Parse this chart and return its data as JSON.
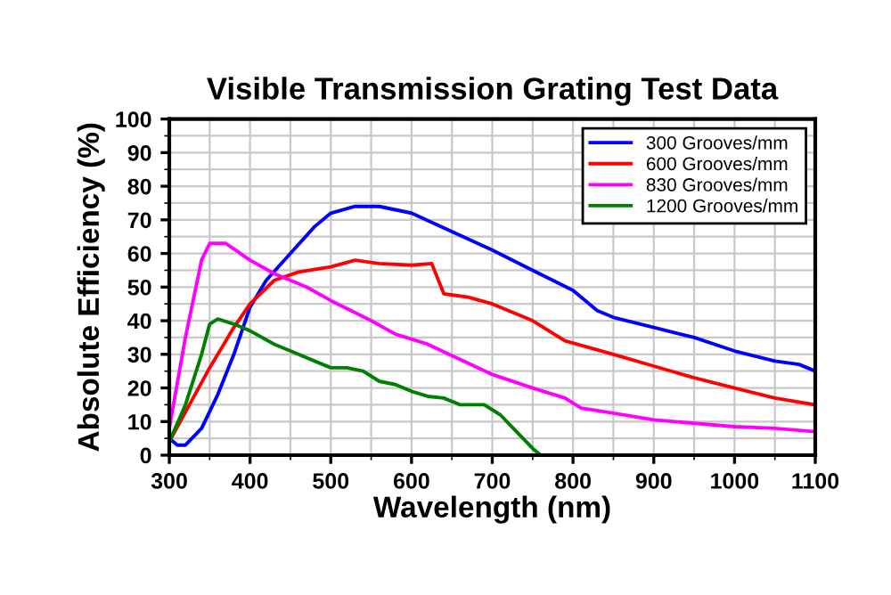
{
  "chart_data": {
    "type": "line",
    "title": "Visible Transmission Grating Test Data",
    "xlabel": "Wavelength (nm)",
    "ylabel": "Absolute Efficiency (%)",
    "xlim": [
      300,
      1100
    ],
    "xticks": [
      300,
      400,
      500,
      600,
      700,
      800,
      900,
      1000,
      1100
    ],
    "ylim": [
      0,
      100
    ],
    "yticks": [
      0,
      10,
      20,
      30,
      40,
      50,
      60,
      70,
      80,
      90,
      100
    ],
    "grid": true,
    "legend": "top right",
    "marker": "none",
    "line_style": "solid",
    "series": [
      {
        "name": "300 Grooves/mm",
        "color": "#0000ff",
        "x": [
          300,
          310,
          320,
          340,
          360,
          380,
          400,
          420,
          450,
          480,
          500,
          530,
          560,
          600,
          650,
          700,
          750,
          800,
          830,
          850,
          900,
          950,
          1000,
          1050,
          1080,
          1100
        ],
        "values": [
          5,
          3,
          3,
          8,
          18,
          30,
          44,
          52,
          60,
          68,
          72,
          74,
          74,
          72,
          66.5,
          61,
          55,
          49,
          43,
          41,
          38,
          35,
          31,
          28,
          27,
          25
        ]
      },
      {
        "name": "600 Grooves/mm",
        "color": "#ff0000",
        "x": [
          300,
          350,
          380,
          400,
          430,
          460,
          500,
          530,
          560,
          600,
          625,
          640,
          670,
          700,
          750,
          790,
          850,
          900,
          950,
          1000,
          1050,
          1100
        ],
        "values": [
          4,
          26,
          38,
          45,
          52,
          54.5,
          56,
          58,
          57,
          56.5,
          57,
          48,
          47,
          45,
          40,
          34,
          30,
          26.5,
          23,
          20,
          17,
          15
        ]
      },
      {
        "name": "830 Grooves/mm",
        "color": "#ff00ff",
        "x": [
          300,
          320,
          340,
          350,
          370,
          400,
          430,
          470,
          500,
          550,
          580,
          620,
          660,
          700,
          750,
          790,
          810,
          850,
          900,
          1000,
          1050,
          1100
        ],
        "values": [
          8,
          35,
          58,
          63,
          63,
          58,
          54,
          50,
          46,
          40,
          36,
          33,
          28.5,
          24,
          20,
          17,
          14,
          12.5,
          10.5,
          8.5,
          8,
          7
        ]
      },
      {
        "name": "1200 Grooves/mm",
        "color": "#008000",
        "x": [
          300,
          320,
          340,
          350,
          360,
          380,
          400,
          430,
          460,
          480,
          500,
          520,
          540,
          560,
          580,
          600,
          620,
          640,
          660,
          690,
          710,
          730,
          750,
          760
        ],
        "values": [
          4,
          15,
          30,
          39,
          40.5,
          39,
          37,
          33,
          30,
          28,
          26,
          26,
          25,
          22,
          21,
          19,
          17.5,
          17,
          15,
          15,
          12,
          7,
          2,
          0
        ]
      }
    ]
  }
}
